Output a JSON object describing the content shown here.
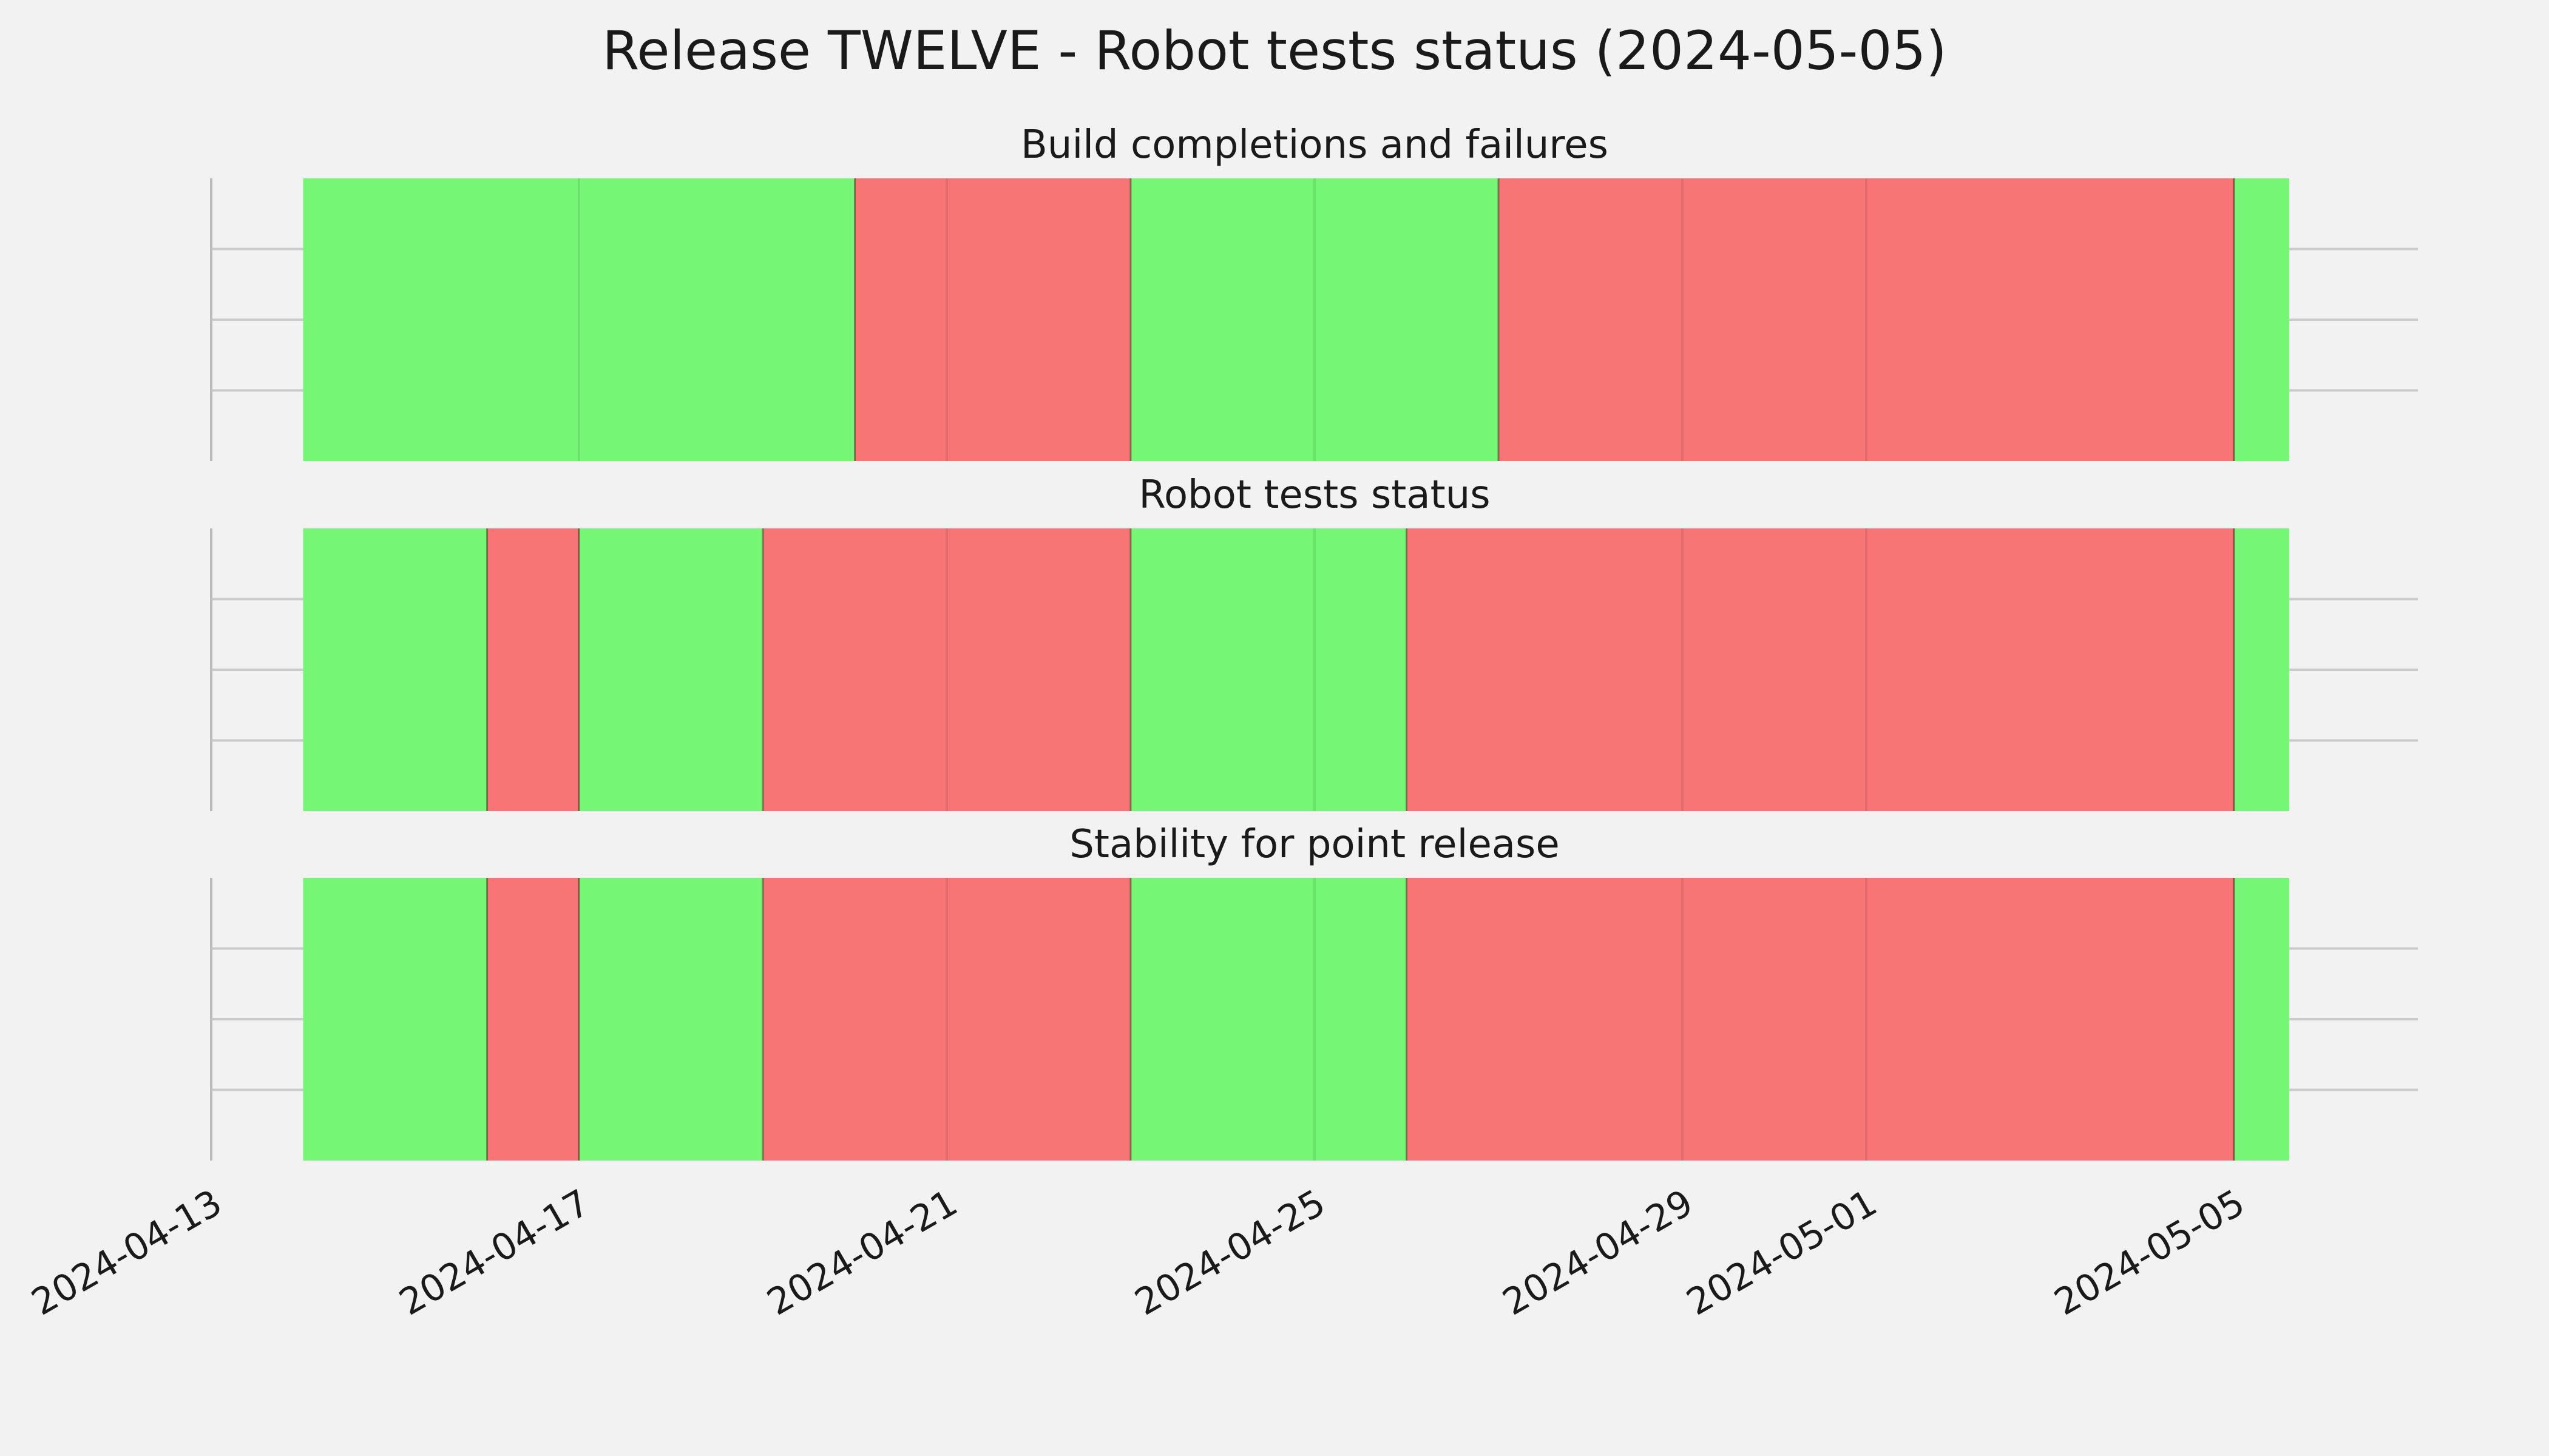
{
  "chart_data": {
    "type": "timeline",
    "title": "Release TWELVE - Robot tests status (2024-05-05)",
    "x_range": [
      "2024-04-13",
      "2024-05-07"
    ],
    "x_ticks": [
      "2024-04-13",
      "2024-04-17",
      "2024-04-21",
      "2024-04-25",
      "2024-04-29",
      "2024-05-01",
      "2024-05-05"
    ],
    "grid": true,
    "colors": {
      "pass": "#75f775",
      "fail": "#f77575",
      "background": "#f2f2f2",
      "grid": "#cbcbcb"
    },
    "panels": [
      {
        "title": "Build completions and failures",
        "segments": [
          {
            "start": "2024-04-14",
            "end": "2024-04-20",
            "status": "pass"
          },
          {
            "start": "2024-04-20",
            "end": "2024-04-23",
            "status": "fail"
          },
          {
            "start": "2024-04-23",
            "end": "2024-04-27",
            "status": "pass"
          },
          {
            "start": "2024-04-27",
            "end": "2024-05-05",
            "status": "fail"
          },
          {
            "start": "2024-05-05",
            "end": "2024-05-05T14:24",
            "status": "pass"
          }
        ]
      },
      {
        "title": "Robot tests status",
        "segments": [
          {
            "start": "2024-04-14",
            "end": "2024-04-16",
            "status": "pass"
          },
          {
            "start": "2024-04-16",
            "end": "2024-04-17",
            "status": "fail"
          },
          {
            "start": "2024-04-17",
            "end": "2024-04-19",
            "status": "pass"
          },
          {
            "start": "2024-04-19",
            "end": "2024-04-23",
            "status": "fail"
          },
          {
            "start": "2024-04-23",
            "end": "2024-04-26",
            "status": "pass"
          },
          {
            "start": "2024-04-26",
            "end": "2024-05-05",
            "status": "fail"
          },
          {
            "start": "2024-05-05",
            "end": "2024-05-05T14:24",
            "status": "pass"
          }
        ]
      },
      {
        "title": "Stability for point release",
        "segments": [
          {
            "start": "2024-04-14",
            "end": "2024-04-16",
            "status": "pass"
          },
          {
            "start": "2024-04-16",
            "end": "2024-04-17",
            "status": "fail"
          },
          {
            "start": "2024-04-17",
            "end": "2024-04-19",
            "status": "pass"
          },
          {
            "start": "2024-04-19",
            "end": "2024-04-23",
            "status": "fail"
          },
          {
            "start": "2024-04-23",
            "end": "2024-04-26",
            "status": "pass"
          },
          {
            "start": "2024-04-26",
            "end": "2024-05-05",
            "status": "fail"
          },
          {
            "start": "2024-05-05",
            "end": "2024-05-05T14:24",
            "status": "pass"
          }
        ]
      }
    ]
  }
}
